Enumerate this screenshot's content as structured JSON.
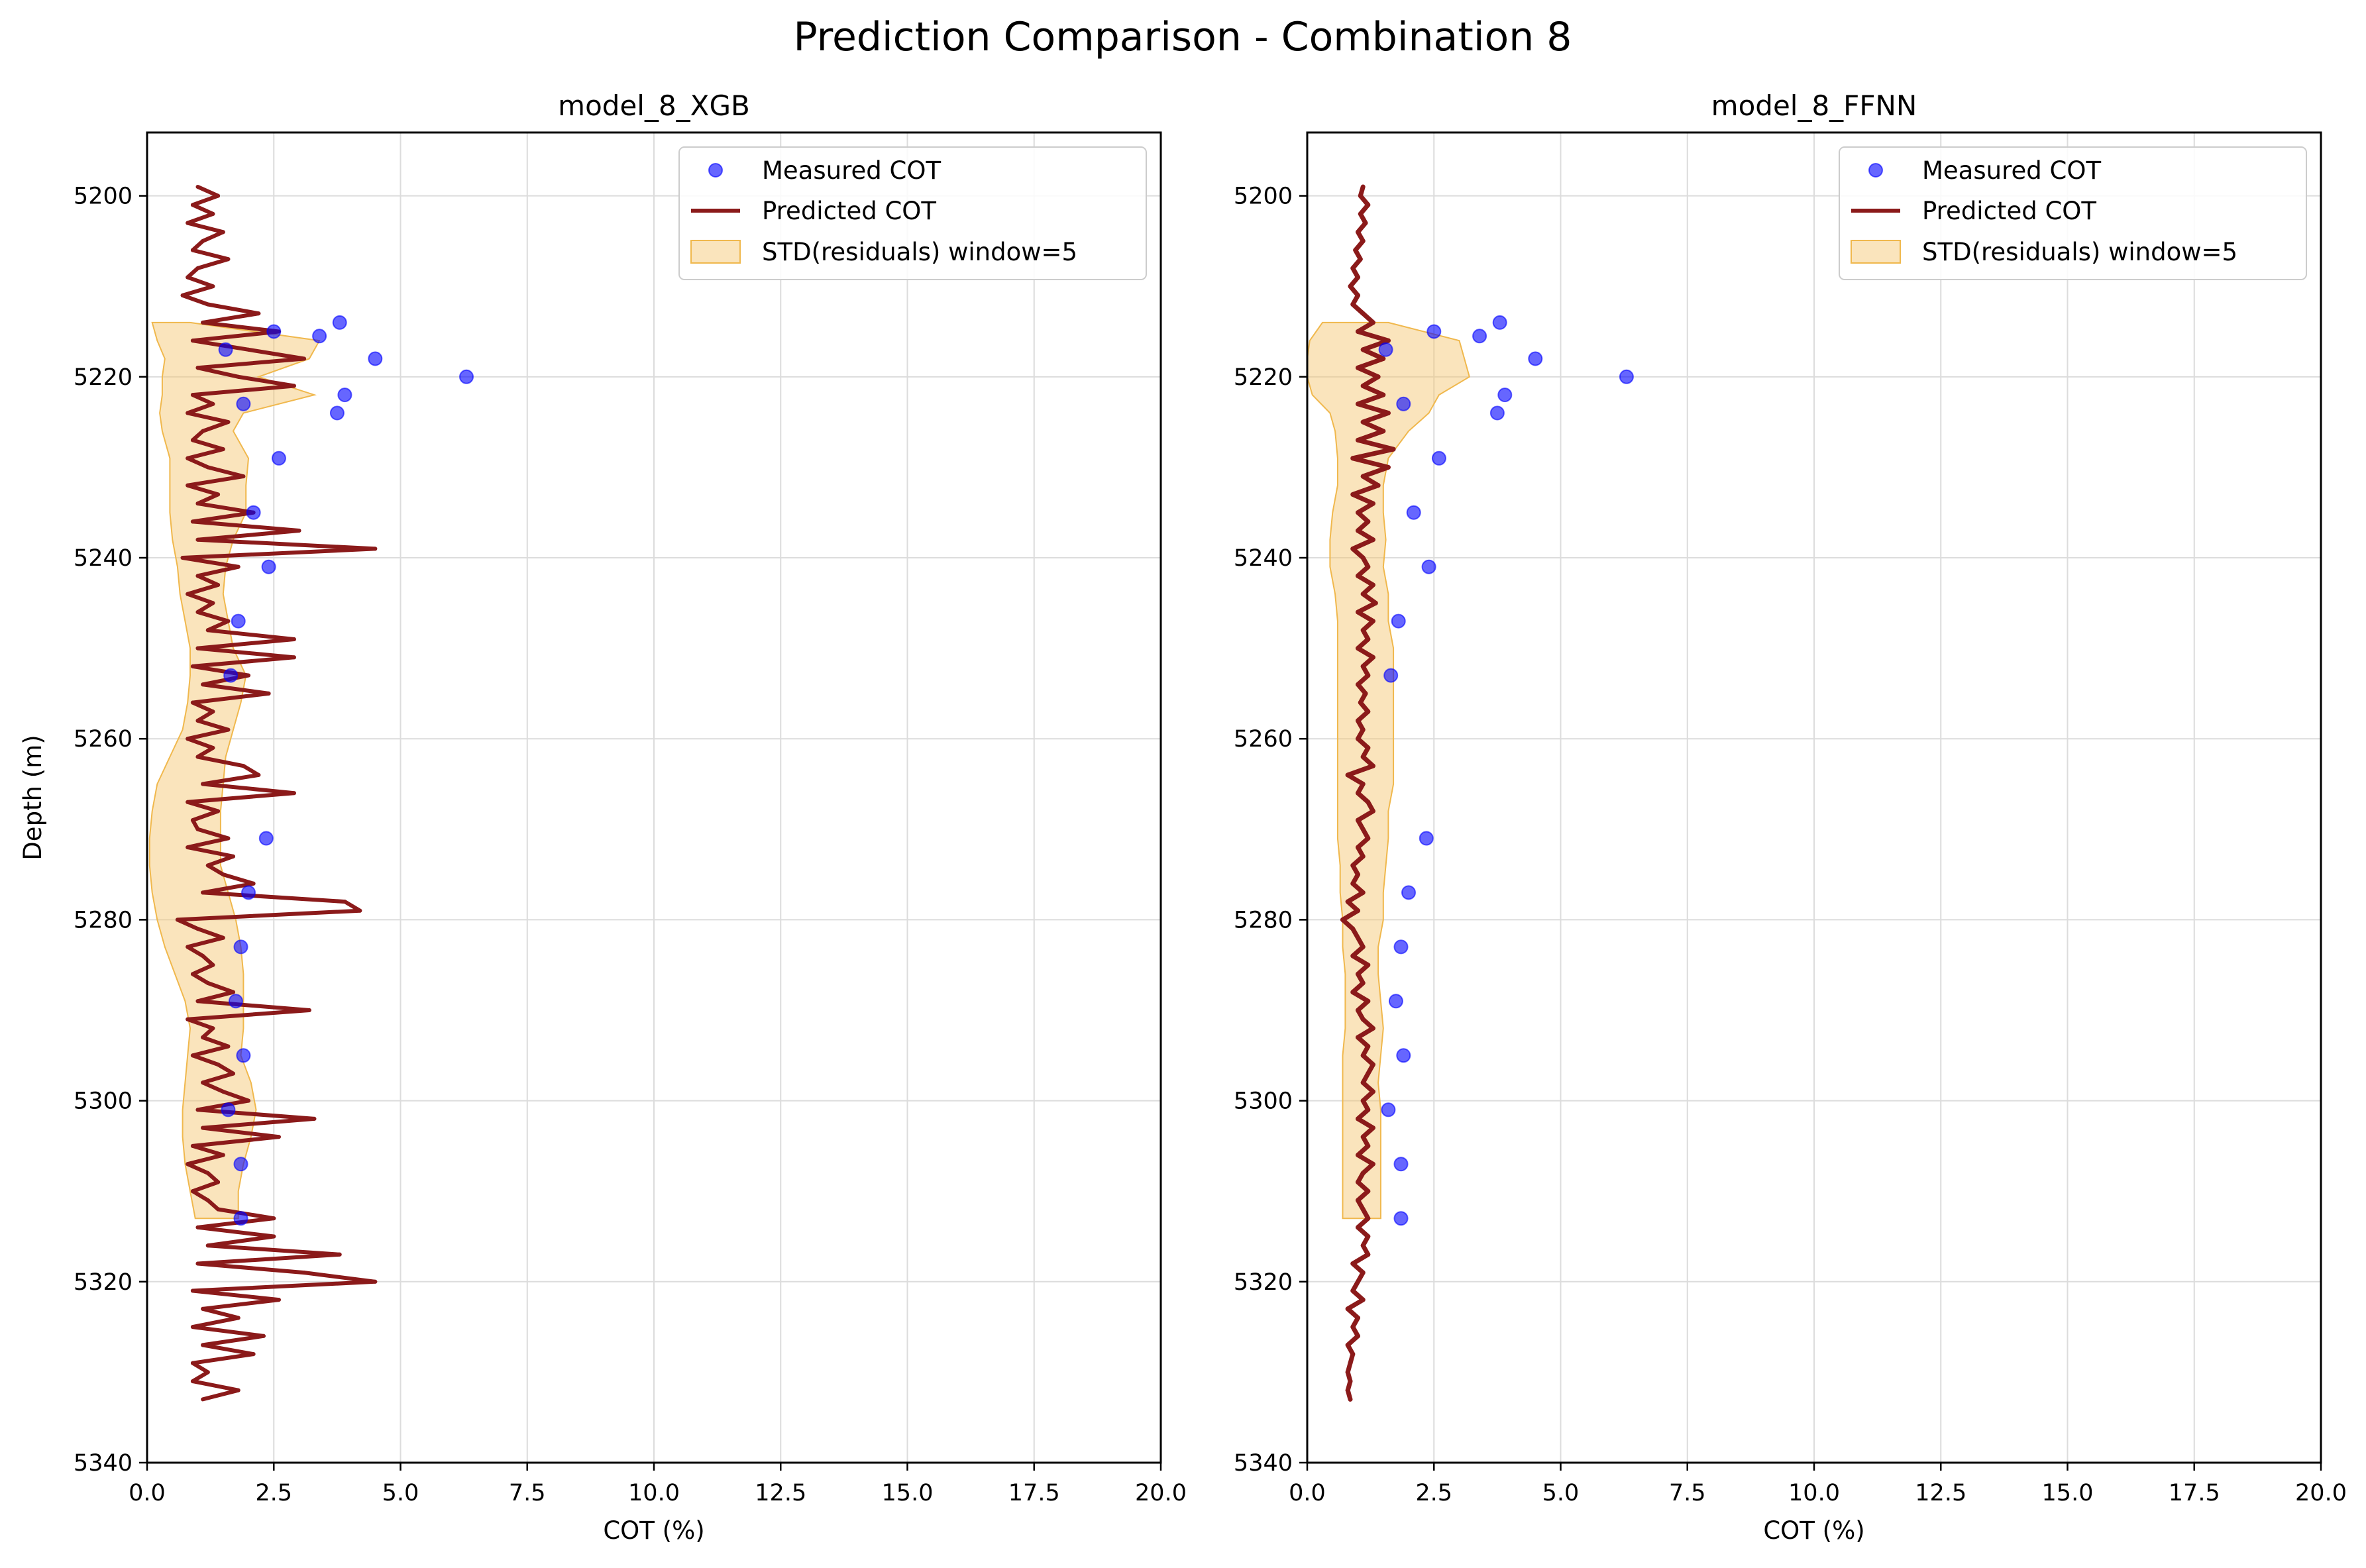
{
  "figure": {
    "suptitle": "Prediction Comparison - Combination 8"
  },
  "colors": {
    "measured": "#0000ff",
    "predicted": "#8b1a1a",
    "band_fill": "#f5c46a",
    "band_edge": "#f0b84d",
    "grid": "#dcdcdc"
  },
  "chart_data": [
    {
      "type": "line",
      "title": "model_8_XGB",
      "xlabel": "COT (%)",
      "ylabel": "Depth (m)",
      "xlim": [
        0,
        20
      ],
      "ylim": [
        5340,
        5193
      ],
      "y_inverted": true,
      "xticks": [
        "0.0",
        "2.5",
        "5.0",
        "7.5",
        "10.0",
        "12.5",
        "15.0",
        "17.5",
        "20.0"
      ],
      "yticks": [
        "5200",
        "5220",
        "5240",
        "5260",
        "5280",
        "5300",
        "5320",
        "5340"
      ],
      "grid": true,
      "legend": {
        "position": "top-right",
        "entries": [
          "Measured COT",
          "Predicted COT",
          "STD(residuals) window=5"
        ]
      },
      "measured": {
        "name": "Measured COT",
        "depth": [
          5214,
          5215,
          5215.5,
          5217,
          5218,
          5220,
          5222,
          5223,
          5224,
          5229,
          5235,
          5241,
          5247,
          5253,
          5271,
          5277,
          5283,
          5289,
          5295,
          5301,
          5307,
          5313
        ],
        "cot": [
          3.8,
          2.5,
          3.4,
          1.55,
          4.5,
          6.3,
          3.9,
          1.9,
          3.75,
          2.6,
          2.1,
          2.4,
          1.8,
          1.65,
          2.35,
          2.0,
          1.85,
          1.75,
          1.9,
          1.6,
          1.85,
          1.85
        ]
      },
      "predicted": {
        "name": "Predicted COT",
        "depth": [
          5199.0,
          5200.0,
          5201.0,
          5202.0,
          5203.0,
          5204.0,
          5205.0,
          5206.0,
          5207.0,
          5208.0,
          5209.0,
          5210.0,
          5211.0,
          5212.0,
          5213.0,
          5214.0,
          5215.0,
          5216.0,
          5217.0,
          5218.0,
          5219.0,
          5220.0,
          5221.0,
          5222.0,
          5223.0,
          5224.0,
          5225.0,
          5226.0,
          5227.0,
          5228.0,
          5229.0,
          5230.0,
          5231.0,
          5232.0,
          5233.0,
          5234.0,
          5235.0,
          5236.0,
          5237.0,
          5238.0,
          5239.0,
          5240.0,
          5241.0,
          5242.0,
          5243.0,
          5244.0,
          5245.0,
          5246.0,
          5247.0,
          5248.0,
          5249.0,
          5250.0,
          5251.0,
          5252.0,
          5253.0,
          5254.0,
          5255.0,
          5256.0,
          5257.0,
          5258.0,
          5259.0,
          5260.0,
          5261.0,
          5262.0,
          5263.0,
          5264.0,
          5265.0,
          5266.0,
          5267.0,
          5268.0,
          5269.0,
          5270.0,
          5271.0,
          5272.0,
          5273.0,
          5274.0,
          5275.0,
          5276.0,
          5277.0,
          5278.0,
          5279.0,
          5280.0,
          5281.0,
          5282.0,
          5283.0,
          5284.0,
          5285.0,
          5286.0,
          5287.0,
          5288.0,
          5289.0,
          5290.0,
          5291.0,
          5292.0,
          5293.0,
          5294.0,
          5295.0,
          5296.0,
          5297.0,
          5298.0,
          5299.0,
          5300.0,
          5301.0,
          5302.0,
          5303.0,
          5304.0,
          5305.0,
          5306.0,
          5307.0,
          5308.0,
          5309.0,
          5310.0,
          5311.0,
          5312.0,
          5313.0,
          5314.0,
          5315.0,
          5316.0,
          5317.0,
          5318.0,
          5319.0,
          5320.0,
          5321.0,
          5322.0,
          5323.0,
          5324.0,
          5325.0,
          5326.0,
          5327.0,
          5328.0,
          5329.0,
          5330.0,
          5331.0,
          5332.0,
          5333.0
        ],
        "cot": [
          1.0,
          1.4,
          0.9,
          1.3,
          0.8,
          1.5,
          1.1,
          0.9,
          1.6,
          1.0,
          0.8,
          1.3,
          0.7,
          1.2,
          2.2,
          1.1,
          2.6,
          0.9,
          2.0,
          3.1,
          1.0,
          1.8,
          2.9,
          0.9,
          1.3,
          0.8,
          1.6,
          1.1,
          0.9,
          1.5,
          0.8,
          1.2,
          1.9,
          0.8,
          1.4,
          1.0,
          2.1,
          0.9,
          3.0,
          1.0,
          4.5,
          0.7,
          1.8,
          1.0,
          1.4,
          0.8,
          1.3,
          1.0,
          1.6,
          1.2,
          2.9,
          1.0,
          2.9,
          0.9,
          2.0,
          1.1,
          2.4,
          0.9,
          1.3,
          1.0,
          1.6,
          0.8,
          1.3,
          1.0,
          1.9,
          2.2,
          1.1,
          2.9,
          0.8,
          1.4,
          0.9,
          1.0,
          1.6,
          0.8,
          1.7,
          1.2,
          1.5,
          2.1,
          1.1,
          3.9,
          4.2,
          0.6,
          1.0,
          1.5,
          0.8,
          1.1,
          1.3,
          0.9,
          1.2,
          1.7,
          1.0,
          3.2,
          0.8,
          1.3,
          1.1,
          1.6,
          0.9,
          1.4,
          1.7,
          1.1,
          1.5,
          2.0,
          1.0,
          3.3,
          1.1,
          2.6,
          0.9,
          1.5,
          0.8,
          1.2,
          1.4,
          0.9,
          1.2,
          1.4,
          2.5,
          1.0,
          2.5,
          1.2,
          3.8,
          1.0,
          3.1,
          4.5,
          0.9,
          2.6,
          1.1,
          1.8,
          0.9,
          2.3,
          1.1,
          2.1,
          0.9,
          1.2,
          0.9,
          1.8,
          1.1
        ]
      },
      "std_band": {
        "name": "STD(residuals) window=5",
        "depth": [
          5214,
          5216,
          5218,
          5220,
          5222,
          5224,
          5226,
          5229,
          5232,
          5235,
          5238,
          5241,
          5244,
          5247,
          5250,
          5253,
          5256,
          5259,
          5262,
          5265,
          5268,
          5271,
          5274,
          5277,
          5280,
          5283,
          5286,
          5289,
          5292,
          5295,
          5298,
          5301,
          5304,
          5307,
          5310,
          5313
        ],
        "lower": [
          0.1,
          0.2,
          0.35,
          0.3,
          0.3,
          0.25,
          0.3,
          0.45,
          0.45,
          0.45,
          0.5,
          0.6,
          0.65,
          0.75,
          0.85,
          0.85,
          0.8,
          0.7,
          0.45,
          0.2,
          0.1,
          0.05,
          0.05,
          0.1,
          0.2,
          0.35,
          0.55,
          0.75,
          0.85,
          0.8,
          0.75,
          0.7,
          0.7,
          0.75,
          0.85,
          0.95
        ],
        "upper": [
          0.85,
          3.4,
          3.2,
          2.2,
          3.3,
          1.9,
          1.7,
          2.0,
          1.95,
          1.95,
          1.7,
          1.55,
          1.5,
          1.6,
          1.7,
          1.95,
          1.85,
          1.7,
          1.55,
          1.5,
          1.45,
          1.45,
          1.45,
          1.6,
          1.75,
          1.85,
          1.9,
          1.9,
          1.9,
          1.85,
          2.05,
          2.15,
          2.05,
          1.9,
          1.8,
          1.8
        ]
      }
    },
    {
      "type": "line",
      "title": "model_8_FFNN",
      "xlabel": "COT (%)",
      "ylabel": "",
      "xlim": [
        0,
        20
      ],
      "ylim": [
        5340,
        5193
      ],
      "y_inverted": true,
      "xticks": [
        "0.0",
        "2.5",
        "5.0",
        "7.5",
        "10.0",
        "12.5",
        "15.0",
        "17.5",
        "20.0"
      ],
      "yticks": [
        "5200",
        "5220",
        "5240",
        "5260",
        "5280",
        "5300",
        "5320",
        "5340"
      ],
      "grid": true,
      "legend": {
        "position": "top-right",
        "entries": [
          "Measured COT",
          "Predicted COT",
          "STD(residuals) window=5"
        ]
      },
      "measured": {
        "name": "Measured COT",
        "depth": [
          5214,
          5215,
          5215.5,
          5217,
          5218,
          5220,
          5222,
          5223,
          5224,
          5229,
          5235,
          5241,
          5247,
          5253,
          5271,
          5277,
          5283,
          5289,
          5295,
          5301,
          5307,
          5313
        ],
        "cot": [
          3.8,
          2.5,
          3.4,
          1.55,
          4.5,
          6.3,
          3.9,
          1.9,
          3.75,
          2.6,
          2.1,
          2.4,
          1.8,
          1.65,
          2.35,
          2.0,
          1.85,
          1.75,
          1.9,
          1.6,
          1.85,
          1.85
        ]
      },
      "predicted": {
        "name": "Predicted COT",
        "depth": [
          5199.0,
          5200.0,
          5201.0,
          5202.0,
          5203.0,
          5204.0,
          5205.0,
          5206.0,
          5207.0,
          5208.0,
          5209.0,
          5210.0,
          5211.0,
          5212.0,
          5213.0,
          5214.0,
          5215.0,
          5216.0,
          5217.0,
          5218.0,
          5219.0,
          5220.0,
          5221.0,
          5222.0,
          5223.0,
          5224.0,
          5225.0,
          5226.0,
          5227.0,
          5228.0,
          5229.0,
          5230.0,
          5231.0,
          5232.0,
          5233.0,
          5234.0,
          5235.0,
          5236.0,
          5237.0,
          5238.0,
          5239.0,
          5240.0,
          5241.0,
          5242.0,
          5243.0,
          5244.0,
          5245.0,
          5246.0,
          5247.0,
          5248.0,
          5249.0,
          5250.0,
          5251.0,
          5252.0,
          5253.0,
          5254.0,
          5255.0,
          5256.0,
          5257.0,
          5258.0,
          5259.0,
          5260.0,
          5261.0,
          5262.0,
          5263.0,
          5264.0,
          5265.0,
          5266.0,
          5267.0,
          5268.0,
          5269.0,
          5270.0,
          5271.0,
          5272.0,
          5273.0,
          5274.0,
          5275.0,
          5276.0,
          5277.0,
          5278.0,
          5279.0,
          5280.0,
          5281.0,
          5282.0,
          5283.0,
          5284.0,
          5285.0,
          5286.0,
          5287.0,
          5288.0,
          5289.0,
          5290.0,
          5291.0,
          5292.0,
          5293.0,
          5294.0,
          5295.0,
          5296.0,
          5297.0,
          5298.0,
          5299.0,
          5300.0,
          5301.0,
          5302.0,
          5303.0,
          5304.0,
          5305.0,
          5306.0,
          5307.0,
          5308.0,
          5309.0,
          5310.0,
          5311.0,
          5312.0,
          5313.0,
          5314.0,
          5315.0,
          5316.0,
          5317.0,
          5318.0,
          5319.0,
          5320.0,
          5321.0,
          5322.0,
          5323.0,
          5324.0,
          5325.0,
          5326.0,
          5327.0,
          5328.0,
          5329.0,
          5330.0,
          5331.0,
          5332.0,
          5333.0
        ],
        "cot": [
          1.1,
          1.05,
          1.2,
          1.05,
          1.15,
          1.0,
          1.1,
          0.95,
          1.05,
          0.9,
          1.0,
          0.85,
          1.0,
          0.9,
          1.1,
          1.3,
          1.0,
          1.6,
          1.1,
          1.5,
          1.0,
          1.4,
          1.1,
          1.5,
          1.0,
          1.6,
          1.1,
          1.5,
          1.0,
          1.7,
          0.9,
          1.6,
          1.1,
          1.4,
          0.9,
          1.3,
          1.0,
          1.2,
          1.0,
          1.3,
          0.9,
          1.1,
          1.2,
          1.0,
          1.3,
          1.1,
          1.35,
          1.0,
          1.3,
          1.1,
          1.2,
          1.0,
          1.3,
          1.1,
          1.2,
          1.0,
          1.15,
          1.05,
          1.2,
          1.0,
          1.1,
          1.0,
          1.2,
          1.1,
          1.3,
          0.8,
          1.1,
          1.0,
          1.2,
          1.3,
          1.0,
          1.1,
          1.2,
          1.0,
          1.1,
          0.9,
          1.0,
          0.9,
          1.1,
          0.8,
          1.0,
          0.7,
          0.9,
          1.0,
          1.1,
          0.9,
          1.2,
          1.0,
          1.1,
          0.9,
          1.2,
          1.0,
          1.1,
          1.3,
          1.0,
          1.2,
          1.1,
          1.3,
          1.2,
          1.1,
          1.3,
          1.1,
          1.2,
          1.0,
          1.3,
          1.1,
          1.2,
          1.0,
          1.3,
          1.1,
          1.0,
          1.2,
          1.0,
          1.1,
          1.2,
          1.0,
          1.2,
          1.1,
          1.2,
          0.9,
          1.1,
          1.0,
          0.9,
          1.1,
          0.8,
          1.0,
          0.9,
          1.0,
          0.8,
          0.9,
          0.85,
          0.8,
          0.85,
          0.8,
          0.85
        ]
      },
      "std_band": {
        "name": "STD(residuals) window=5",
        "depth": [
          5214,
          5216,
          5218,
          5220,
          5222,
          5224,
          5226,
          5229,
          5232,
          5235,
          5238,
          5241,
          5244,
          5247,
          5250,
          5253,
          5256,
          5259,
          5262,
          5265,
          5268,
          5271,
          5274,
          5277,
          5280,
          5283,
          5286,
          5289,
          5292,
          5295,
          5298,
          5301,
          5304,
          5307,
          5310,
          5313
        ],
        "lower": [
          0.3,
          0.05,
          0.0,
          0.0,
          0.1,
          0.45,
          0.55,
          0.6,
          0.6,
          0.5,
          0.45,
          0.45,
          0.55,
          0.6,
          0.6,
          0.6,
          0.6,
          0.6,
          0.6,
          0.6,
          0.6,
          0.6,
          0.65,
          0.65,
          0.7,
          0.7,
          0.75,
          0.75,
          0.75,
          0.7,
          0.7,
          0.7,
          0.7,
          0.7,
          0.7,
          0.7
        ],
        "upper": [
          1.6,
          3.0,
          3.1,
          3.2,
          2.6,
          2.4,
          2.0,
          1.6,
          1.5,
          1.5,
          1.55,
          1.5,
          1.6,
          1.6,
          1.7,
          1.7,
          1.7,
          1.7,
          1.7,
          1.7,
          1.6,
          1.6,
          1.55,
          1.5,
          1.5,
          1.4,
          1.4,
          1.45,
          1.5,
          1.45,
          1.4,
          1.45,
          1.45,
          1.45,
          1.45,
          1.45
        ]
      }
    }
  ]
}
